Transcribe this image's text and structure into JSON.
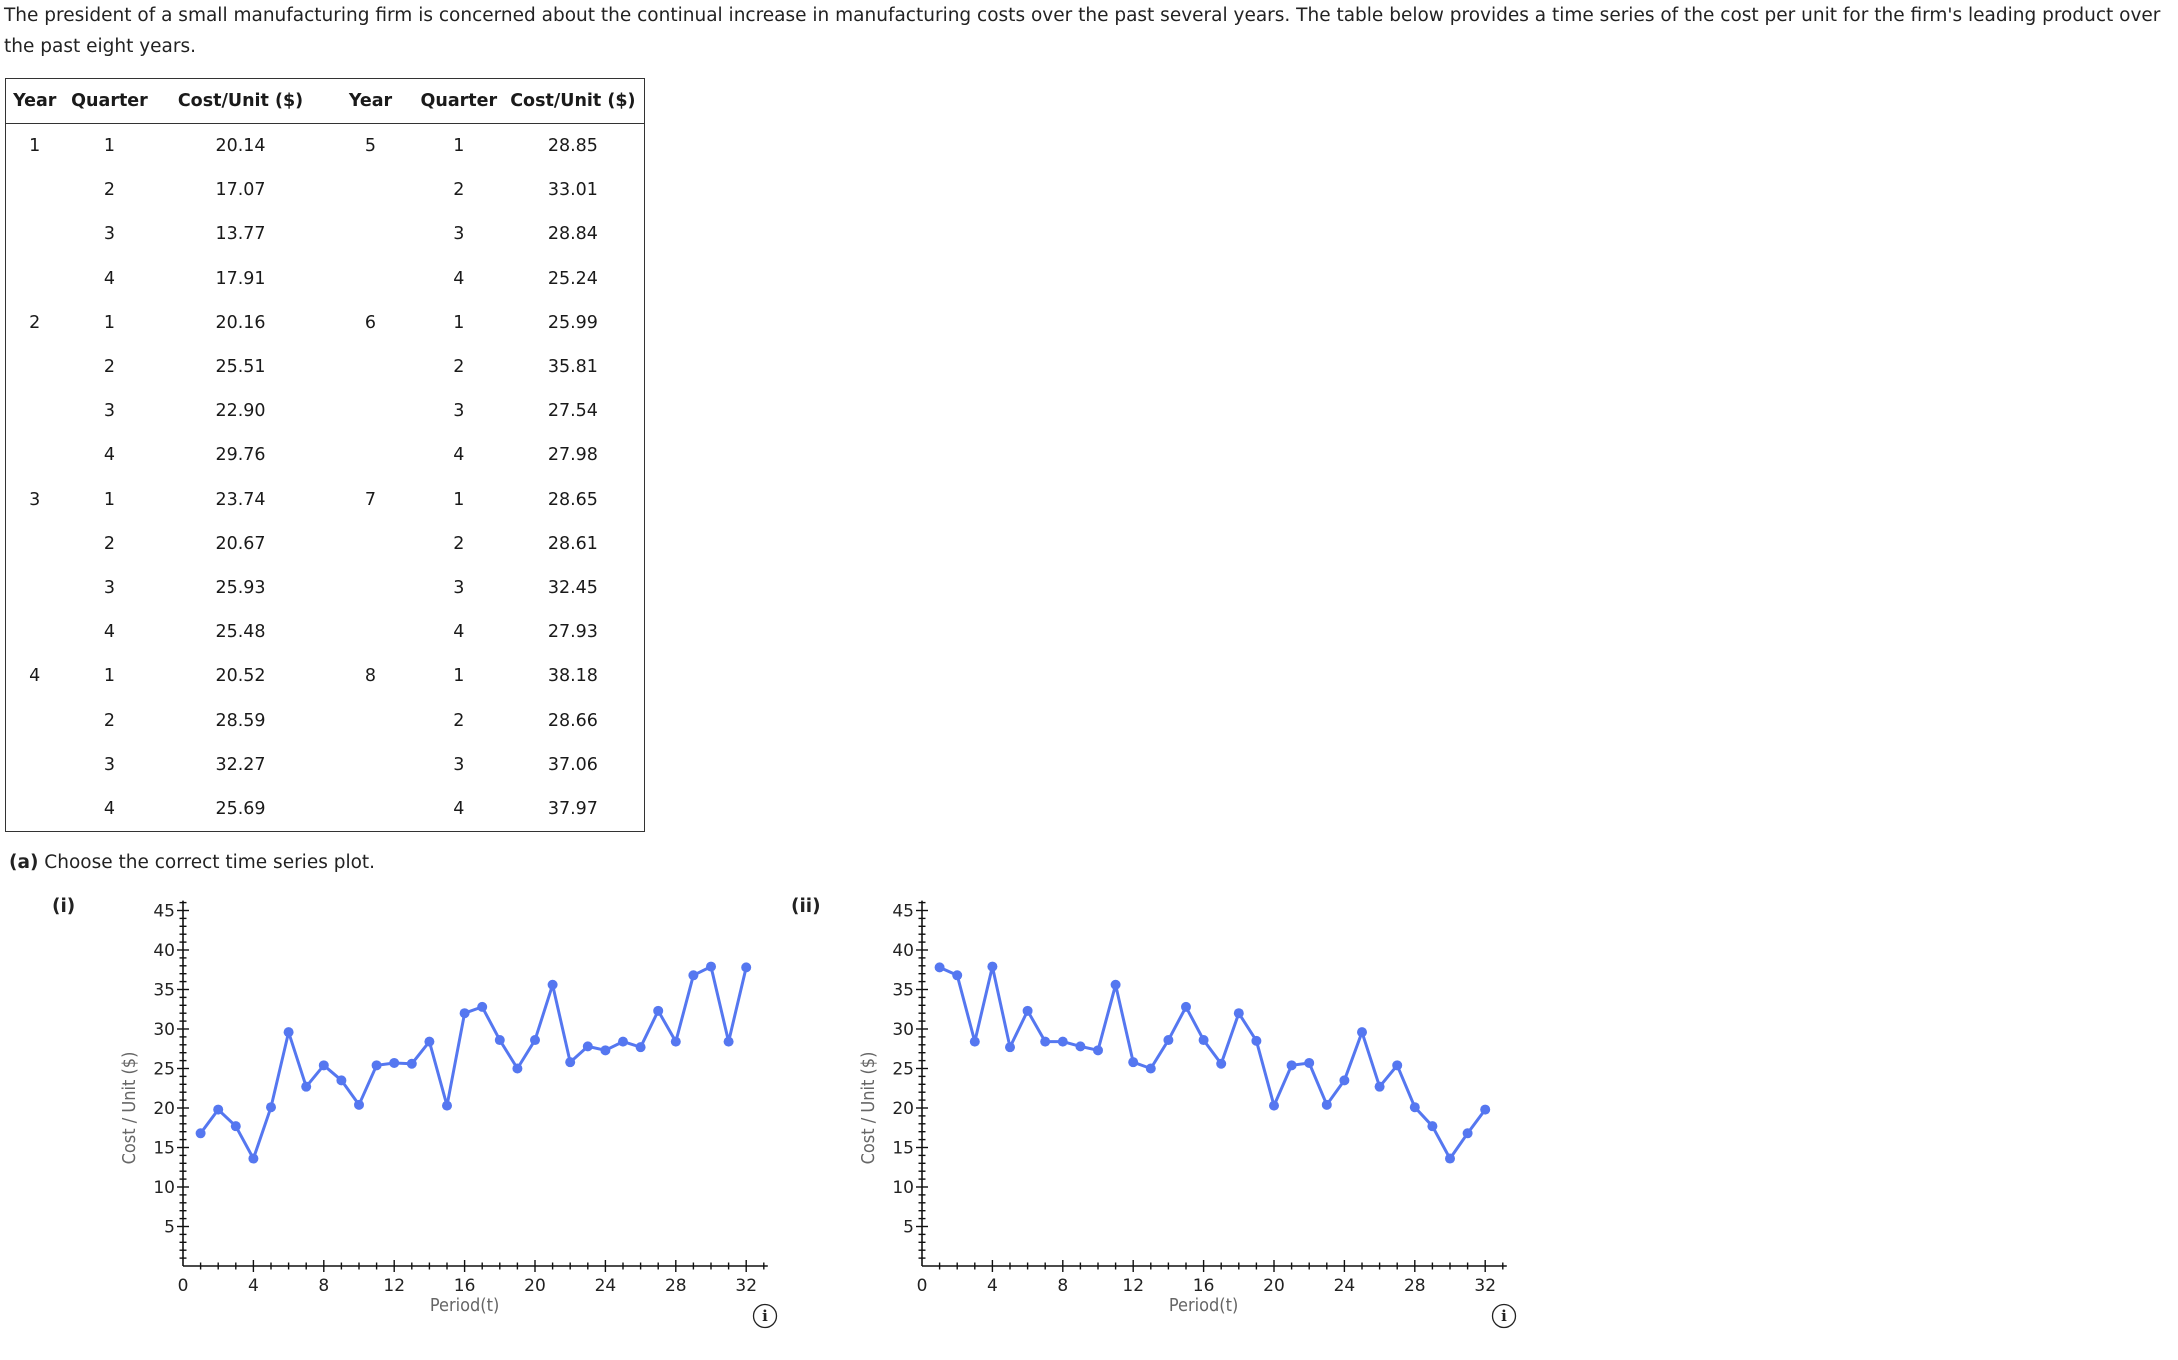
{
  "intro": {
    "text": "The president of a small manufacturing firm is concerned about the continual increase in manufacturing costs over the past several years. The table below provides a time series of the cost per unit for the firm's leading product over the past eight years."
  },
  "table": {
    "headers": [
      "Year",
      "Quarter",
      "Cost/Unit ($)",
      "Year",
      "Quarter",
      "Cost/Unit ($)"
    ],
    "rows": [
      [
        "1",
        "1",
        "20.14",
        "5",
        "1",
        "28.85"
      ],
      [
        "",
        "2",
        "17.07",
        "",
        "2",
        "33.01"
      ],
      [
        "",
        "3",
        "13.77",
        "",
        "3",
        "28.84"
      ],
      [
        "",
        "4",
        "17.91",
        "",
        "4",
        "25.24"
      ],
      [
        "2",
        "1",
        "20.16",
        "6",
        "1",
        "25.99"
      ],
      [
        "",
        "2",
        "25.51",
        "",
        "2",
        "35.81"
      ],
      [
        "",
        "3",
        "22.90",
        "",
        "3",
        "27.54"
      ],
      [
        "",
        "4",
        "29.76",
        "",
        "4",
        "27.98"
      ],
      [
        "3",
        "1",
        "23.74",
        "7",
        "1",
        "28.65"
      ],
      [
        "",
        "2",
        "20.67",
        "",
        "2",
        "28.61"
      ],
      [
        "",
        "3",
        "25.93",
        "",
        "3",
        "32.45"
      ],
      [
        "",
        "4",
        "25.48",
        "",
        "4",
        "27.93"
      ],
      [
        "4",
        "1",
        "20.52",
        "8",
        "1",
        "38.18"
      ],
      [
        "",
        "2",
        "28.59",
        "",
        "2",
        "28.66"
      ],
      [
        "",
        "3",
        "32.27",
        "",
        "3",
        "37.06"
      ],
      [
        "",
        "4",
        "25.69",
        "",
        "4",
        "37.97"
      ]
    ]
  },
  "question": {
    "part": "(a)",
    "text": "Choose the correct time series plot."
  },
  "options": [
    {
      "label": "(i)",
      "info_icon": "info-icon"
    },
    {
      "label": "(ii)",
      "info_icon": "info-icon"
    }
  ],
  "colors": {
    "series": "#5577f0",
    "axis": "#111111",
    "axis_title": "#666666"
  },
  "chart_data": [
    {
      "type": "line",
      "title": "(i)",
      "xlabel": "Period(t)",
      "ylabel": "Cost / Unit ($)",
      "xlim": [
        0,
        33
      ],
      "ylim": [
        0,
        46
      ],
      "xticks": [
        0,
        4,
        8,
        12,
        16,
        20,
        24,
        28,
        32
      ],
      "yticks": [
        5,
        10,
        15,
        20,
        25,
        30,
        35,
        40,
        45
      ],
      "grid": false,
      "legend": null,
      "x": [
        1,
        2,
        3,
        4,
        5,
        6,
        7,
        8,
        9,
        10,
        11,
        12,
        13,
        14,
        15,
        16,
        17,
        18,
        19,
        20,
        21,
        22,
        23,
        24,
        25,
        26,
        27,
        28,
        29,
        30,
        31,
        32
      ],
      "series": [
        {
          "name": "Cost/Unit",
          "values": [
            16.8,
            19.8,
            17.7,
            13.6,
            20.1,
            29.6,
            22.7,
            25.4,
            23.5,
            20.4,
            25.4,
            25.7,
            25.6,
            28.4,
            20.3,
            32.0,
            32.8,
            28.6,
            25.0,
            28.6,
            35.6,
            25.8,
            27.8,
            27.3,
            28.4,
            27.7,
            32.3,
            28.4,
            36.8,
            37.9,
            28.4,
            37.8
          ]
        }
      ]
    },
    {
      "type": "line",
      "title": "(ii)",
      "xlabel": "Period(t)",
      "ylabel": "Cost / Unit ($)",
      "xlim": [
        0,
        33
      ],
      "ylim": [
        0,
        46
      ],
      "xticks": [
        0,
        4,
        8,
        12,
        16,
        20,
        24,
        28,
        32
      ],
      "yticks": [
        5,
        10,
        15,
        20,
        25,
        30,
        35,
        40,
        45
      ],
      "grid": false,
      "legend": null,
      "x": [
        1,
        2,
        3,
        4,
        5,
        6,
        7,
        8,
        9,
        10,
        11,
        12,
        13,
        14,
        15,
        16,
        17,
        18,
        19,
        20,
        21,
        22,
        23,
        24,
        25,
        26,
        27,
        28,
        29,
        30,
        31,
        32
      ],
      "series": [
        {
          "name": "Cost/Unit",
          "values": [
            37.8,
            36.8,
            28.4,
            37.9,
            27.7,
            32.3,
            28.4,
            28.4,
            27.8,
            27.3,
            35.6,
            25.8,
            25.0,
            28.6,
            32.8,
            28.6,
            25.6,
            32.0,
            28.5,
            20.3,
            25.4,
            25.7,
            20.4,
            23.5,
            29.6,
            22.7,
            25.4,
            20.1,
            17.7,
            13.6,
            16.8,
            19.8
          ]
        }
      ]
    }
  ]
}
